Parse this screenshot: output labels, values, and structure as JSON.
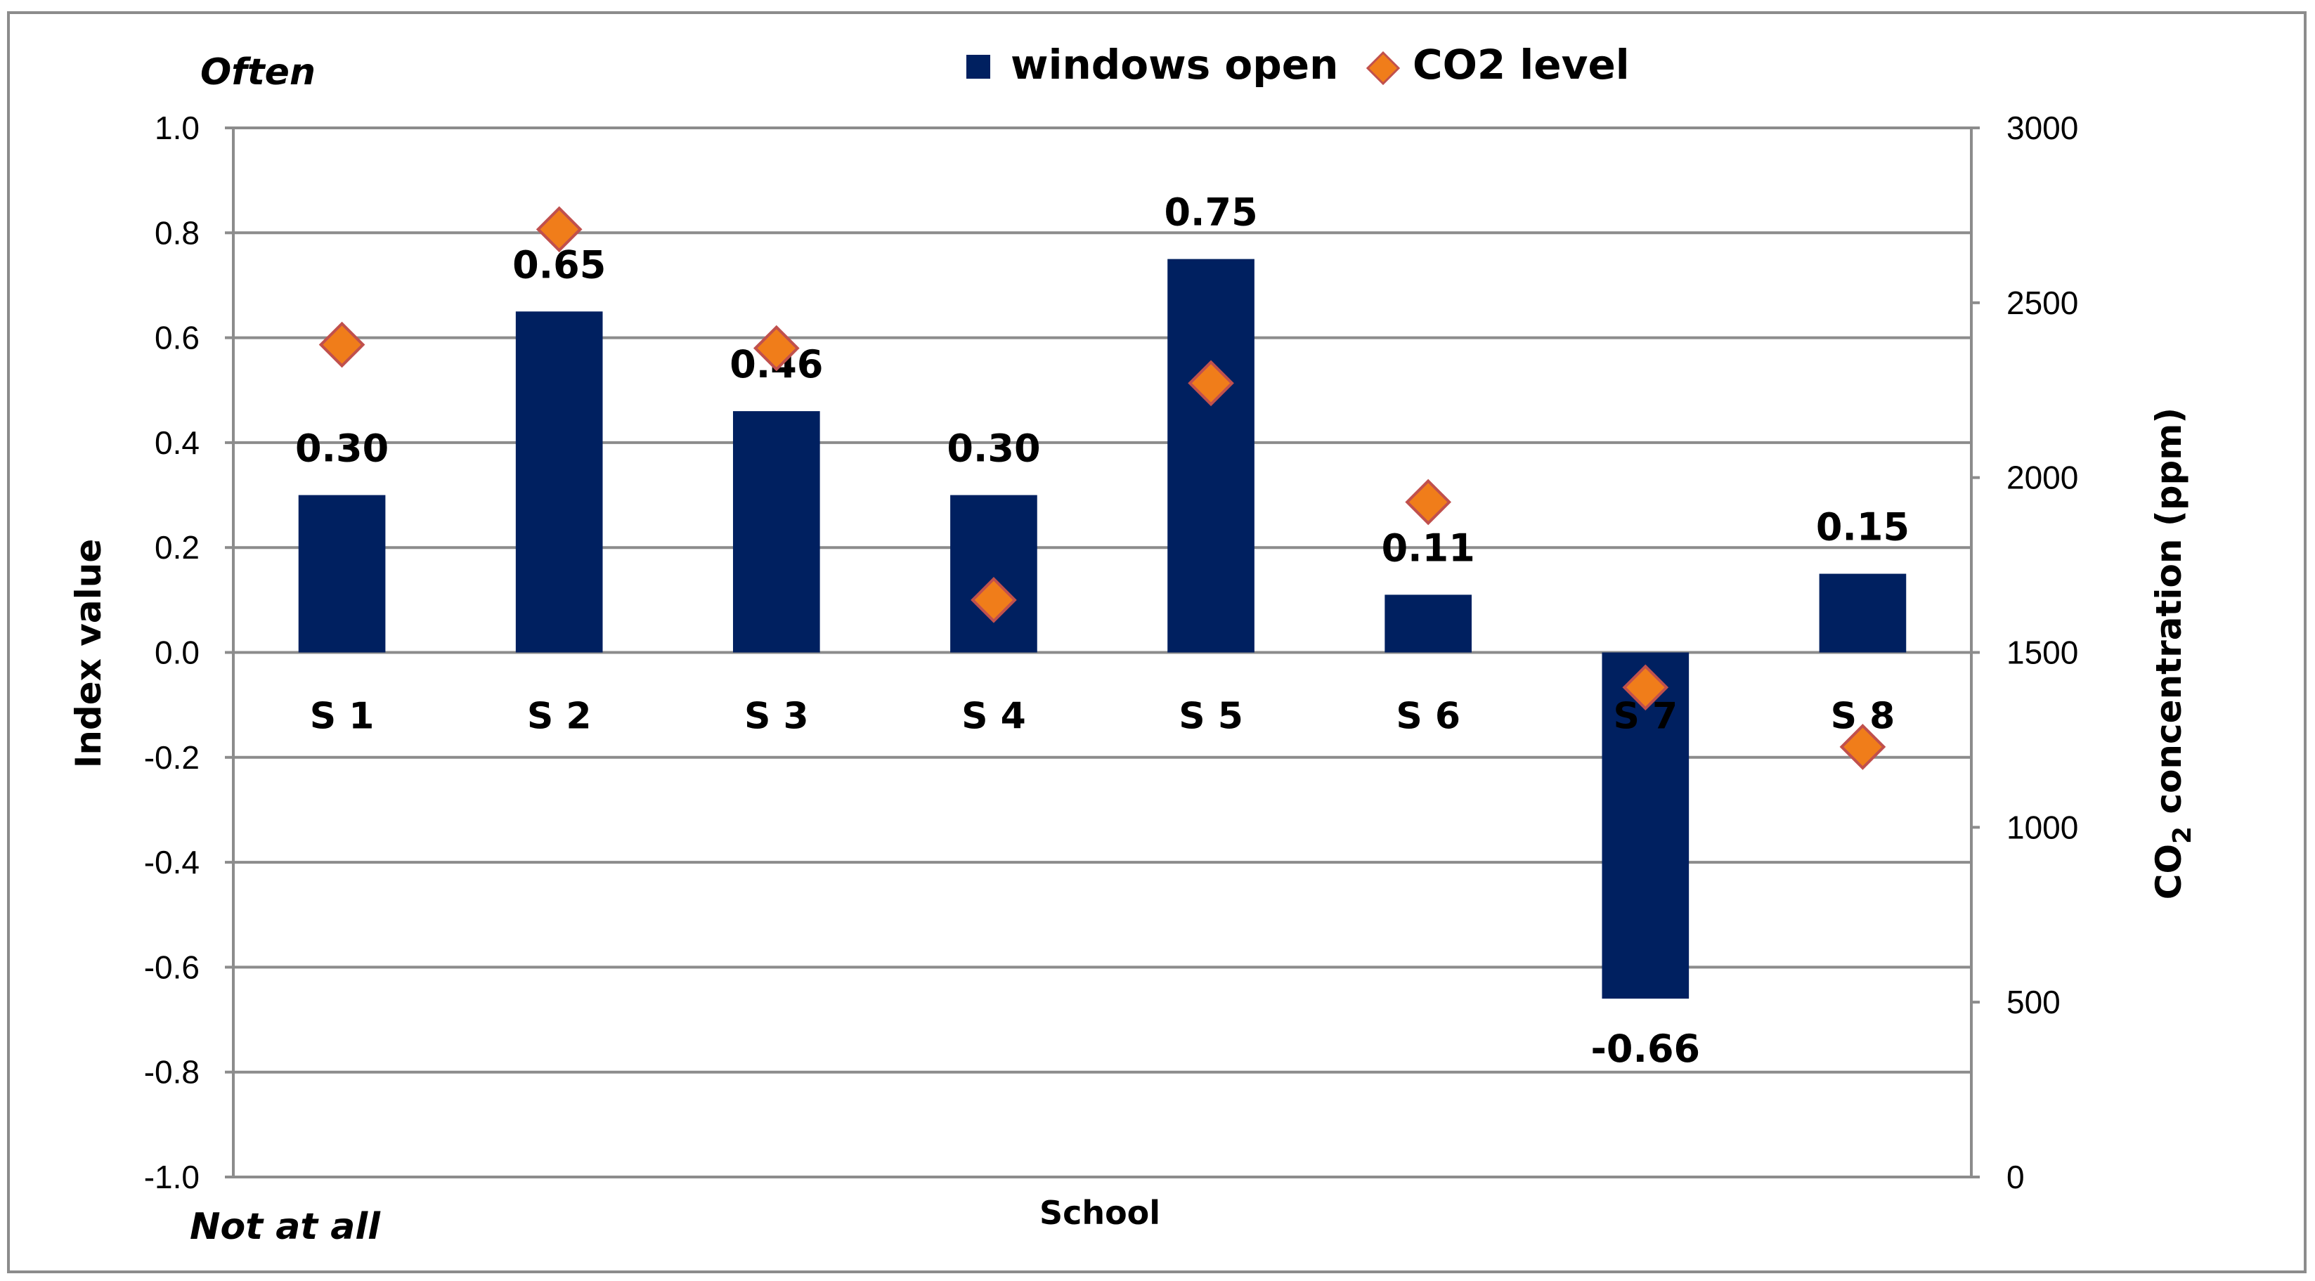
{
  "chart_data": {
    "type": "bar",
    "title": "",
    "xlabel": "School",
    "ylabel": "Index value",
    "y2label_prefix": "CO",
    "y2label_sub": "2",
    "y2label_suffix": " concentration (ppm)",
    "top_note": "Often",
    "bottom_note": "Not at all",
    "categories": [
      "S 1",
      "S 2",
      "S 3",
      "S 4",
      "S 5",
      "S 6",
      "S 7",
      "S 8"
    ],
    "series": [
      {
        "name": "windows open",
        "type": "bar",
        "axis": "left",
        "color": "#002060",
        "values": [
          0.3,
          0.65,
          0.46,
          0.3,
          0.75,
          0.11,
          -0.66,
          0.15
        ],
        "labels": [
          "0.30",
          "0.65",
          "0.46",
          "0.30",
          "0.75",
          "0.11",
          "-0.66",
          "0.15"
        ]
      },
      {
        "name": "CO2 level",
        "type": "scatter",
        "marker": "diamond",
        "axis": "right",
        "color": "#F07D1A",
        "edge_color": "#C0504D",
        "values": [
          2380,
          2710,
          2370,
          1650,
          2270,
          1930,
          1400,
          1230
        ]
      }
    ],
    "ylim": [
      -1.0,
      1.0
    ],
    "yticks": [
      "1.0",
      "0.8",
      "0.6",
      "0.4",
      "0.2",
      "0.0",
      "-0.2",
      "-0.4",
      "-0.6",
      "-0.8",
      "-1.0"
    ],
    "y2lim": [
      0,
      3000
    ],
    "y2ticks": [
      "3000",
      "2500",
      "2000",
      "1500",
      "1000",
      "500",
      "0"
    ],
    "grid": true,
    "legend_position": "top"
  }
}
